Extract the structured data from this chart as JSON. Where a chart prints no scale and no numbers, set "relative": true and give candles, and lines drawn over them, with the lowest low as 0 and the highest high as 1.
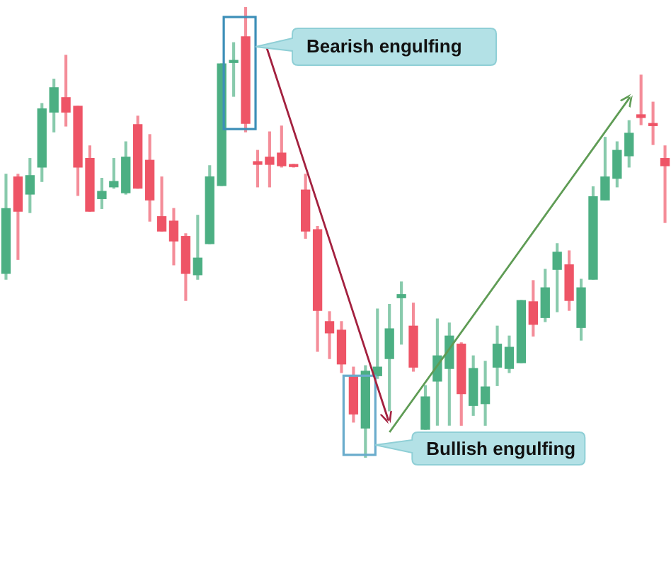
{
  "chart_data": {
    "type": "candlestick",
    "relative": true,
    "categories": [
      null,
      null,
      null,
      null,
      null,
      null,
      null,
      null,
      null,
      null,
      null,
      null,
      null,
      null,
      null,
      null,
      null,
      null,
      null,
      null,
      null,
      null,
      null,
      null,
      null,
      null,
      null,
      null,
      null,
      null,
      null,
      null,
      null,
      null,
      null,
      null,
      null,
      null,
      null,
      null,
      null,
      null,
      null,
      null,
      null,
      null,
      null,
      null,
      null,
      null,
      null,
      null,
      null,
      null,
      null,
      null
    ],
    "ohlc": [
      [
        0.409,
        0.629,
        0.396,
        0.553
      ],
      [
        0.623,
        0.629,
        0.44,
        0.547
      ],
      [
        0.585,
        0.664,
        0.544,
        0.626
      ],
      [
        0.645,
        0.786,
        0.613,
        0.774
      ],
      [
        0.767,
        0.84,
        0.723,
        0.821
      ],
      [
        0.799,
        0.893,
        0.736,
        0.767
      ],
      [
        0.78,
        0.78,
        0.582,
        0.645
      ],
      [
        0.664,
        0.692,
        0.547,
        0.547
      ],
      [
        0.575,
        0.62,
        0.553,
        0.591
      ],
      [
        0.601,
        0.664,
        0.598,
        0.613
      ],
      [
        0.588,
        0.701,
        0.585,
        0.667
      ],
      [
        0.739,
        0.758,
        0.598,
        0.598
      ],
      [
        0.66,
        0.717,
        0.525,
        0.572
      ],
      [
        0.535,
        0.623,
        0.503,
        0.503
      ],
      [
        0.525,
        0.553,
        0.428,
        0.481
      ],
      [
        0.491,
        0.497,
        0.349,
        0.409
      ],
      [
        0.406,
        0.538,
        0.396,
        0.443
      ],
      [
        0.475,
        0.648,
        0.475,
        0.623
      ],
      [
        0.604,
        0.874,
        0.604,
        0.874
      ],
      [
        0.877,
        0.921,
        0.802,
        0.881
      ],
      [
        0.934,
        1,
        0.723,
        0.742
      ],
      [
        0.657,
        0.682,
        0.601,
        0.651
      ],
      [
        0.667,
        0.723,
        0.601,
        0.651
      ],
      [
        0.676,
        0.736,
        0.645,
        0.648
      ],
      [
        0.648,
        0.651,
        0.645,
        0.646
      ],
      [
        0.594,
        0.629,
        0.487,
        0.503
      ],
      [
        0.506,
        0.513,
        0.236,
        0.327
      ],
      [
        0.302,
        0.324,
        0.22,
        0.277
      ],
      [
        0.283,
        0.302,
        0.189,
        0.208
      ],
      [
        0.182,
        0.201,
        0.079,
        0.097
      ],
      [
        0.066,
        0.204,
        0,
        0.192
      ],
      [
        0.182,
        0.33,
        0.176,
        0.201
      ],
      [
        0.22,
        0.34,
        0.104,
        0.286
      ],
      [
        0.355,
        0.39,
        0.252,
        0.362
      ],
      [
        0.292,
        0.343,
        0.192,
        0.201
      ],
      [
        0.063,
        0.16,
        0.063,
        0.135
      ],
      [
        0.17,
        0.308,
        0.072,
        0.226
      ],
      [
        0.198,
        0.299,
        0.072,
        0.27
      ],
      [
        0.252,
        0.255,
        0.072,
        0.142
      ],
      [
        0.116,
        0.226,
        0.094,
        0.198
      ],
      [
        0.12,
        0.214,
        0.072,
        0.157
      ],
      [
        0.201,
        0.292,
        0.16,
        0.252
      ],
      [
        0.198,
        0.27,
        0.189,
        0.245
      ],
      [
        0.211,
        0.349,
        0.211,
        0.349
      ],
      [
        0.346,
        0.393,
        0.27,
        0.296
      ],
      [
        0.311,
        0.418,
        0.302,
        0.377
      ],
      [
        0.418,
        0.475,
        0.324,
        0.456
      ],
      [
        0.428,
        0.459,
        0.327,
        0.349
      ],
      [
        0.289,
        0.396,
        0.261,
        0.377
      ],
      [
        0.396,
        0.601,
        0.396,
        0.579
      ],
      [
        0.572,
        0.711,
        0.572,
        0.623
      ],
      [
        0.62,
        0.701,
        0.601,
        0.682
      ],
      [
        0.67,
        0.748,
        0.645,
        0.72
      ],
      [
        0.761,
        0.849,
        0.739,
        0.755
      ],
      [
        0.739,
        0.789,
        0.695,
        0.737
      ],
      [
        0.664,
        0.692,
        0.522,
        0.648
      ]
    ],
    "colors": [
      "#4caf83",
      "#ee5466",
      "#4caf83",
      "#4caf83",
      "#4caf83",
      "#ee5466",
      "#ee5466",
      "#ee5466",
      "#4caf83",
      "#4caf83",
      "#4caf83",
      "#ee5466",
      "#ee5466",
      "#ee5466",
      "#ee5466",
      "#ee5466",
      "#4caf83",
      "#4caf83",
      "#4caf83",
      "#4caf83",
      "#ee5466",
      "#ee5466",
      "#ee5466",
      "#ee5466",
      "#ee5466",
      "#ee5466",
      "#ee5466",
      "#ee5466",
      "#ee5466",
      "#ee5466",
      "#4caf83",
      "#4caf83",
      "#4caf83",
      "#4caf83",
      "#ee5466",
      "#4caf83",
      "#4caf83",
      "#4caf83",
      "#ee5466",
      "#4caf83",
      "#4caf83",
      "#4caf83",
      "#4caf83",
      "#4caf83",
      "#ee5466",
      "#4caf83",
      "#4caf83",
      "#ee5466",
      "#4caf83",
      "#4caf83",
      "#4caf83",
      "#4caf83",
      "#4caf83",
      "#ee5466",
      "#ee5466",
      "#ee5466"
    ],
    "annotations": [
      "Bearish engulfing",
      "Bullish engulfing"
    ]
  }
}
